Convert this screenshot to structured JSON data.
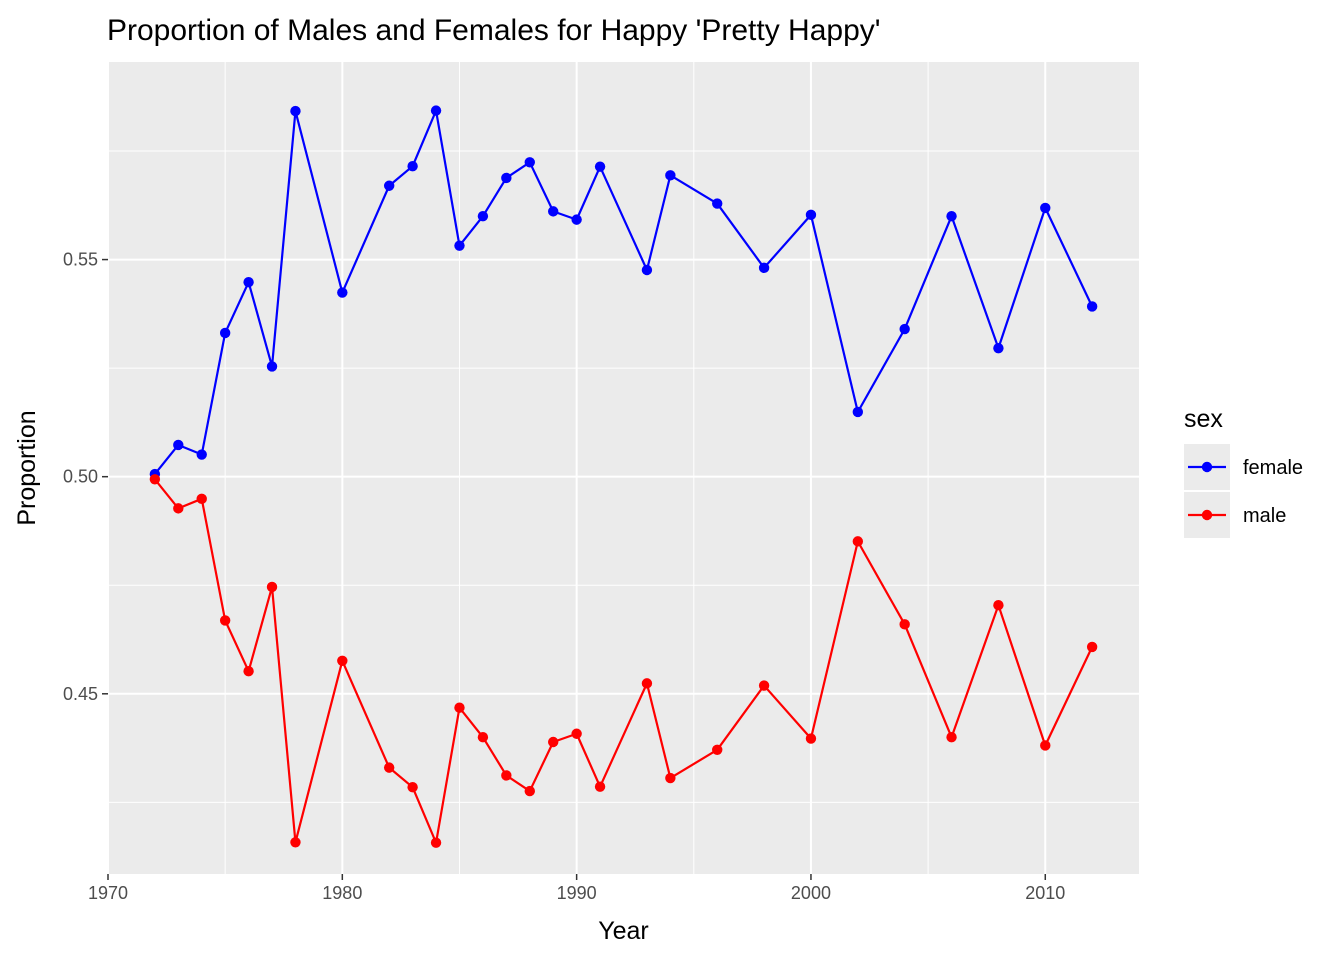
{
  "chart_data": {
    "type": "line",
    "title": "Proportion of Males and Females for Happy 'Pretty Happy'",
    "xlabel": "Year",
    "ylabel": "Proportion",
    "xlim": [
      1970,
      2014
    ],
    "ylim": [
      0.4085,
      0.5955
    ],
    "x_ticks": [
      "1970",
      "1980",
      "1990",
      "2000",
      "2010"
    ],
    "x_tick_values": [
      1970,
      1980,
      1990,
      2000,
      2010
    ],
    "y_ticks": [
      "0.45",
      "0.50",
      "0.55"
    ],
    "y_tick_values": [
      0.45,
      0.5,
      0.55
    ],
    "grid": true,
    "legend_title": "sex",
    "legend_position": "right",
    "x": [
      1972,
      1973,
      1974,
      1975,
      1976,
      1977,
      1978,
      1980,
      1982,
      1983,
      1984,
      1985,
      1986,
      1987,
      1988,
      1989,
      1990,
      1991,
      1993,
      1994,
      1996,
      1998,
      2000,
      2002,
      2004,
      2006,
      2008,
      2010,
      2012
    ],
    "series": [
      {
        "name": "female",
        "color": "#0000ff",
        "values": [
          0.5006,
          0.5073,
          0.5051,
          0.5331,
          0.5448,
          0.5254,
          0.5842,
          0.5424,
          0.567,
          0.5715,
          0.5843,
          0.5532,
          0.56,
          0.5688,
          0.5724,
          0.5611,
          0.5592,
          0.5714,
          0.5476,
          0.5694,
          0.5629,
          0.5481,
          0.5603,
          0.5149,
          0.534,
          0.56,
          0.5296,
          0.5619,
          0.5392
        ]
      },
      {
        "name": "male",
        "color": "#ff0000",
        "values": [
          0.4994,
          0.4927,
          0.4949,
          0.4669,
          0.4552,
          0.4746,
          0.4158,
          0.4576,
          0.433,
          0.4285,
          0.4157,
          0.4468,
          0.44,
          0.4312,
          0.4276,
          0.4389,
          0.4408,
          0.4286,
          0.4524,
          0.4306,
          0.4371,
          0.4519,
          0.4397,
          0.4851,
          0.466,
          0.44,
          0.4704,
          0.4381,
          0.4608
        ]
      }
    ]
  }
}
